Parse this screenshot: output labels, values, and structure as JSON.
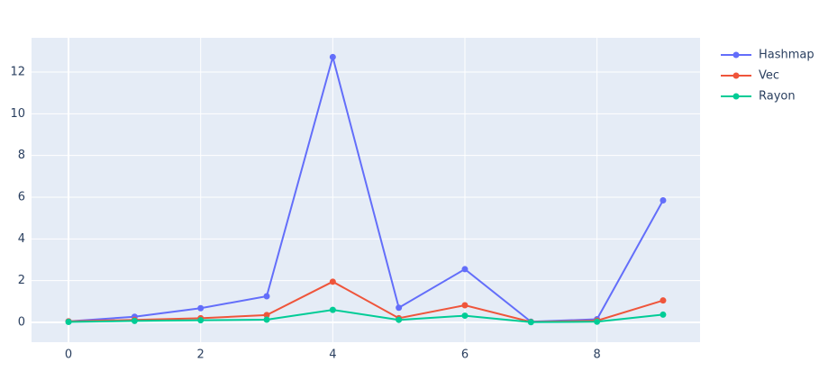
{
  "chart_data": {
    "type": "line",
    "x": [
      0,
      1,
      2,
      3,
      4,
      5,
      6,
      7,
      8,
      9
    ],
    "series": [
      {
        "name": "Hashmap",
        "color": "#636efa",
        "values": [
          0.05,
          0.27,
          0.68,
          1.25,
          12.72,
          0.7,
          2.55,
          0.03,
          0.15,
          5.85
        ]
      },
      {
        "name": "Vec",
        "color": "#ef553b",
        "values": [
          0.05,
          0.12,
          0.2,
          0.35,
          1.95,
          0.2,
          0.82,
          0.02,
          0.08,
          1.05
        ]
      },
      {
        "name": "Rayon",
        "color": "#00cc96",
        "values": [
          0.02,
          0.07,
          0.1,
          0.13,
          0.6,
          0.12,
          0.32,
          0.01,
          0.03,
          0.37
        ]
      }
    ],
    "xlim": [
      -0.56,
      9.56
    ],
    "xticks": [
      0,
      2,
      4,
      6,
      8
    ],
    "ylim": [
      -0.95,
      13.64
    ],
    "yticks": [
      0,
      2,
      4,
      6,
      8,
      10,
      12
    ],
    "grid": true,
    "legend": "right"
  }
}
